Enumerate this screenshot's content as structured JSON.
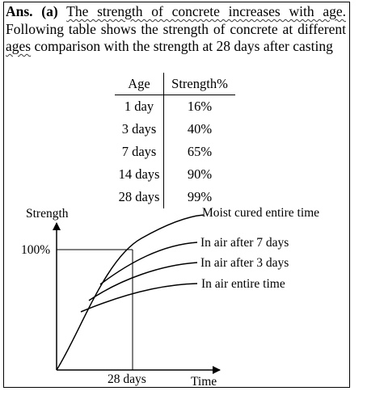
{
  "answer": {
    "prefix": "Ans. (a)",
    "line1_lead": "The strength of concrete increases with age.",
    "line2_pre": "Following table shows the strength of concrete at different ",
    "ages_word": "ages",
    "line3_post": " comparison with the strength at 28 days after casting"
  },
  "table": {
    "headers": [
      "Age",
      "Strength%"
    ],
    "rows": [
      {
        "age": "1 day",
        "strength": "16%"
      },
      {
        "age": "3 days",
        "strength": "40%"
      },
      {
        "age": "7 days",
        "strength": "65%"
      },
      {
        "age": "14 days",
        "strength": "90%"
      },
      {
        "age": "28 days",
        "strength": "99%"
      }
    ]
  },
  "graph": {
    "y_axis_label": "Strength",
    "x_axis_label": "Time",
    "y_marker_label": "100%",
    "x_marker_label": "28 days",
    "curves": [
      {
        "label": "Moist cured entire time"
      },
      {
        "label": "In air after 7 days"
      },
      {
        "label": "In air after 3 days"
      },
      {
        "label": "In air entire time"
      }
    ]
  }
}
